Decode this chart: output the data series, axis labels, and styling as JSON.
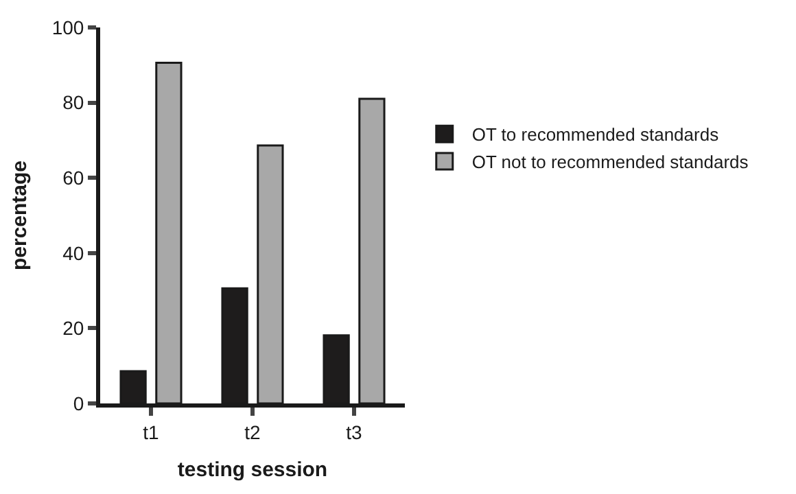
{
  "chart_data": {
    "type": "bar",
    "xlabel": "testing session",
    "ylabel": "percentage",
    "categories": [
      "t1",
      "t2",
      "t3"
    ],
    "series": [
      {
        "name": "OT to recommended standards",
        "color": "#1e1c1c",
        "values": [
          8.6,
          30.6,
          18.1
        ]
      },
      {
        "name": "OT not to recommended standards",
        "color": "#a8a8a8",
        "values": [
          90.6,
          68.6,
          81.0
        ]
      }
    ],
    "ylim": [
      0,
      100
    ],
    "yticks": [
      0,
      20,
      40,
      60,
      80,
      100
    ],
    "legend": "right"
  }
}
